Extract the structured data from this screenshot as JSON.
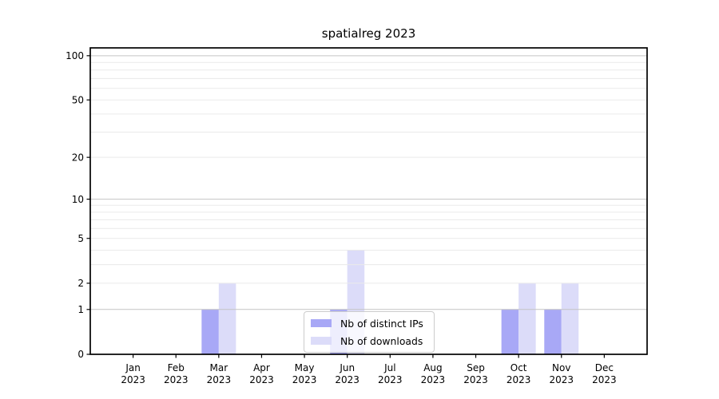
{
  "chart_data": {
    "type": "bar",
    "title": "spatialreg 2023",
    "categories": [
      "Jan",
      "Feb",
      "Mar",
      "Apr",
      "May",
      "Jun",
      "Jul",
      "Aug",
      "Sep",
      "Oct",
      "Nov",
      "Dec"
    ],
    "category_year": "2023",
    "series": [
      {
        "name": "Nb of distinct IPs",
        "color": "#a8a8f6",
        "values": [
          0,
          0,
          1,
          0,
          0,
          1,
          0,
          0,
          0,
          1,
          1,
          0
        ]
      },
      {
        "name": "Nb of downloads",
        "color": "#dcdcf9",
        "values": [
          0,
          0,
          2,
          0,
          0,
          4,
          0,
          0,
          0,
          2,
          2,
          0
        ]
      }
    ],
    "xlabel": "",
    "ylabel": "",
    "y_ticks": [
      0,
      1,
      2,
      5,
      10,
      20,
      50,
      100
    ],
    "y_major_gridlines": [
      1,
      10,
      100
    ],
    "y_minor_gridlines": [
      2,
      3,
      4,
      5,
      6,
      7,
      8,
      9,
      20,
      30,
      40,
      50,
      60,
      70,
      80,
      90
    ],
    "ylim": [
      0,
      113
    ],
    "scale": "log1p",
    "grid": "both",
    "legend_position": "lower center",
    "colors": {
      "major_grid": "#c4c4c4",
      "minor_grid": "#eaeaea",
      "axis": "#000000",
      "tick_text": "#000000"
    }
  }
}
